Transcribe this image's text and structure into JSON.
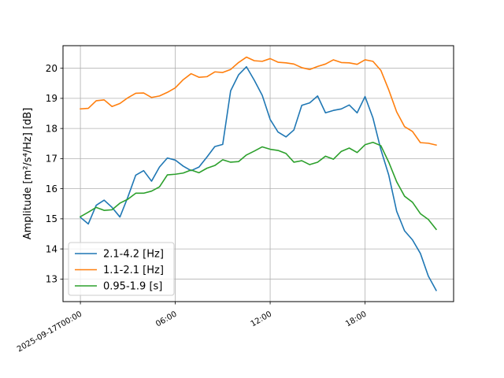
{
  "chart_data": {
    "type": "line",
    "title": "",
    "xlabel": "",
    "ylabel": "Amplitude [m²/s⁴/Hz] [dB]",
    "ylim": [
      12.25,
      20.75
    ],
    "yticks": [
      13,
      14,
      15,
      16,
      17,
      18,
      19,
      20
    ],
    "xlim_hours": [
      -1.1,
      23.6
    ],
    "xticks": [
      {
        "hour": 0,
        "label": "2025-09-17T00:00"
      },
      {
        "hour": 6,
        "label": "06:00"
      },
      {
        "hour": 12,
        "label": "12:00"
      },
      {
        "hour": 18,
        "label": "18:00"
      }
    ],
    "grid": true,
    "legend_position": "lower-left",
    "x_hours": [
      0,
      0.5,
      1,
      1.5,
      2,
      2.5,
      3,
      3.5,
      4,
      4.5,
      5,
      5.5,
      6,
      6.5,
      7,
      7.5,
      8,
      8.5,
      9,
      9.5,
      10,
      10.5,
      11,
      11.5,
      12,
      12.5,
      13,
      13.5,
      14,
      14.5,
      15,
      15.5,
      16,
      16.5,
      17,
      17.5,
      18,
      18.5,
      19,
      19.5,
      20,
      20.5,
      21,
      21.5,
      22,
      22.5
    ],
    "series": [
      {
        "name": "2.1-4.2 [Hz]",
        "color": "#1f77b4",
        "values": [
          15.05,
          14.83,
          15.45,
          15.62,
          15.38,
          15.06,
          15.72,
          16.45,
          16.6,
          16.25,
          16.72,
          17.02,
          16.95,
          16.75,
          16.6,
          16.72,
          17.05,
          17.4,
          17.47,
          19.25,
          19.78,
          20.05,
          19.6,
          19.1,
          18.3,
          17.88,
          17.72,
          17.95,
          18.77,
          18.85,
          19.08,
          18.52,
          18.6,
          18.65,
          18.78,
          18.52,
          19.06,
          18.35,
          17.3,
          16.45,
          15.25,
          14.6,
          14.3,
          13.85,
          13.1,
          12.62
        ]
      },
      {
        "name": "1.1-2.1 [Hz]",
        "color": "#ff7f0e",
        "values": [
          18.65,
          18.67,
          18.92,
          18.95,
          18.73,
          18.83,
          19.02,
          19.17,
          19.18,
          19.03,
          19.08,
          19.2,
          19.35,
          19.62,
          19.82,
          19.7,
          19.72,
          19.88,
          19.86,
          19.96,
          20.19,
          20.37,
          20.25,
          20.23,
          20.32,
          20.2,
          20.18,
          20.14,
          20.02,
          19.96,
          20.06,
          20.14,
          20.28,
          20.19,
          20.18,
          20.13,
          20.28,
          20.23,
          19.93,
          19.28,
          18.55,
          18.06,
          17.9,
          17.53,
          17.51,
          17.45
        ]
      },
      {
        "name": "0.95-1.9 [s]",
        "color": "#2ca02c",
        "values": [
          15.07,
          15.22,
          15.38,
          15.28,
          15.3,
          15.52,
          15.65,
          15.85,
          15.85,
          15.92,
          16.06,
          16.46,
          16.48,
          16.52,
          16.62,
          16.53,
          16.68,
          16.77,
          16.96,
          16.88,
          16.9,
          17.12,
          17.25,
          17.39,
          17.31,
          17.27,
          17.17,
          16.88,
          16.93,
          16.8,
          16.88,
          17.08,
          16.98,
          17.24,
          17.35,
          17.2,
          17.46,
          17.54,
          17.43,
          16.88,
          16.23,
          15.75,
          15.55,
          15.17,
          14.98,
          14.65
        ]
      }
    ]
  }
}
